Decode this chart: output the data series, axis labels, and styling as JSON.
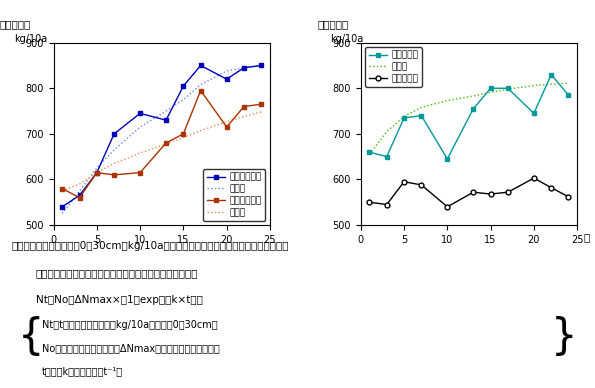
{
  "left": {
    "park_x": [
      1,
      3,
      5,
      7,
      10,
      13,
      15,
      17,
      20,
      22,
      24
    ],
    "park_y": [
      540,
      565,
      615,
      700,
      745,
      730,
      805,
      850,
      820,
      845,
      850
    ],
    "park_pred_x": [
      1,
      3,
      5,
      7,
      10,
      13,
      15,
      17,
      20,
      22,
      24
    ],
    "park_pred_y": [
      525,
      575,
      625,
      665,
      715,
      750,
      775,
      808,
      838,
      845,
      850
    ],
    "beef_x": [
      1,
      3,
      5,
      7,
      10,
      13,
      15,
      17,
      20,
      22,
      24
    ],
    "beef_y": [
      580,
      560,
      615,
      610,
      615,
      680,
      700,
      795,
      715,
      760,
      765
    ],
    "beef_pred_x": [
      1,
      3,
      5,
      7,
      10,
      13,
      15,
      17,
      20,
      22,
      24
    ],
    "beef_pred_y": [
      575,
      590,
      615,
      635,
      658,
      678,
      692,
      707,
      727,
      738,
      748
    ],
    "ylim": [
      500,
      900
    ],
    "xlim": [
      0,
      25
    ],
    "yticks": [
      500,
      600,
      700,
      800,
      900
    ],
    "xticks": [
      0,
      5,
      10,
      15,
      20,
      25
    ],
    "ylabel1": "土壌全窒素",
    "ylabel2": "kg/10a",
    "park_label": "パーク堆肥区",
    "park_pred_label": "予測値",
    "beef_label": "牛ふん堆肥区",
    "beef_pred_label": "予測値",
    "park_color": "#0000bb",
    "park_pred_color": "#6688ee",
    "beef_color": "#aa3300",
    "beef_pred_color": "#ee8855"
  },
  "right": {
    "grass_x": [
      1,
      3,
      5,
      7,
      10,
      13,
      15,
      17,
      20,
      22,
      24
    ],
    "grass_y": [
      660,
      650,
      735,
      740,
      645,
      755,
      800,
      800,
      745,
      830,
      785
    ],
    "grass_pred_x": [
      1,
      3,
      5,
      7,
      10,
      13,
      15,
      17,
      20,
      22,
      24
    ],
    "grass_pred_y": [
      655,
      705,
      738,
      758,
      773,
      783,
      791,
      798,
      806,
      809,
      811
    ],
    "bare_x": [
      1,
      3,
      5,
      7,
      10,
      13,
      15,
      17,
      20,
      22,
      24
    ],
    "bare_y": [
      550,
      545,
      595,
      588,
      540,
      572,
      568,
      572,
      603,
      582,
      562
    ],
    "ylim": [
      500,
      900
    ],
    "xlim": [
      0,
      25
    ],
    "yticks": [
      500,
      600,
      700,
      800,
      900
    ],
    "xticks": [
      0,
      5,
      10,
      15,
      20,
      25
    ],
    "ylabel1": "土壌全窒素",
    "ylabel2": "kg/10a",
    "xlabel": "年",
    "grass_label": "草生栅培区",
    "grass_pred_label": "予測値",
    "bare_label": "清耕栅培区",
    "grass_color": "#009999",
    "grass_pred_color": "#44bb00",
    "bare_color": "#000000"
  },
  "caption_line1": "図１　土壌全窒素（表土0～30cm：kg/10a）の推移（左：堤肥区、右：草生、清耕区）",
  "caption_line2": "予測値：下式で示した指数関数モデルを用いて算出した値",
  "formula": "Nt＝No＋ΔNmax×（1－exp（－k×t））",
  "desc1": "Nt：t年後の土壌全窒素（kg/10a、深さ　0～30cm）",
  "desc2": "No：開始時の土壌全窒素、ΔNmax：土壌全窒素増加最大値",
  "desc3": "t：年、k：速度定数（t⁻¹）"
}
